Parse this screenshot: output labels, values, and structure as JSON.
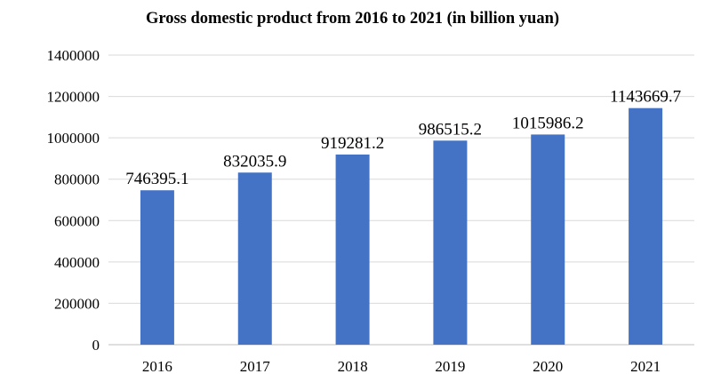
{
  "chart_data": {
    "type": "bar",
    "title": "Gross domestic product from 2016 to 2021 (in billion yuan)",
    "xlabel": "",
    "ylabel": "",
    "categories": [
      "2016",
      "2017",
      "2018",
      "2019",
      "2020",
      "2021"
    ],
    "series": [
      {
        "values": [
          746395.1,
          832035.9,
          919281.2,
          986515.2,
          1015986.2,
          1143669.7
        ],
        "labels": [
          "746395.1",
          "832035.9",
          "919281.2",
          "986515.2",
          "1015986.2",
          "1143669.7"
        ],
        "color": "#4472C4"
      }
    ],
    "ylim": [
      0,
      1400000
    ],
    "yticks": [
      "0",
      "200000",
      "400000",
      "600000",
      "800000",
      "1000000",
      "1200000",
      "1400000"
    ],
    "grid": true,
    "legend": "none"
  }
}
